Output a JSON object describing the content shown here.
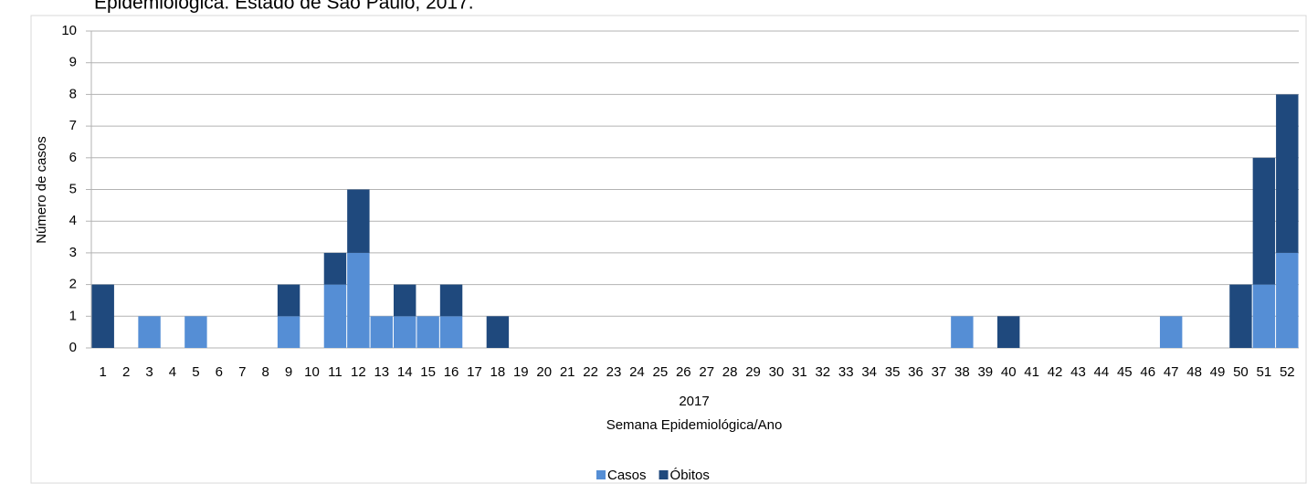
{
  "chart_data": {
    "type": "bar",
    "stacked": true,
    "title": "Epidemiológica. Estado de São Paulo, 2017.",
    "categories": [
      "1",
      "2",
      "3",
      "4",
      "5",
      "6",
      "7",
      "8",
      "9",
      "10",
      "11",
      "12",
      "13",
      "14",
      "15",
      "16",
      "17",
      "18",
      "19",
      "20",
      "21",
      "22",
      "23",
      "24",
      "25",
      "26",
      "27",
      "28",
      "29",
      "30",
      "31",
      "32",
      "33",
      "34",
      "35",
      "36",
      "37",
      "38",
      "39",
      "40",
      "41",
      "42",
      "43",
      "44",
      "45",
      "46",
      "47",
      "48",
      "49",
      "50",
      "51",
      "52"
    ],
    "x_group_label": "2017",
    "x_label": "Semana Epidemiológica/Ano",
    "y_label": "Número de casos",
    "series": [
      {
        "name": "Casos",
        "color": "#558ed5",
        "values": [
          0,
          0,
          1,
          0,
          1,
          0,
          0,
          0,
          1,
          0,
          2,
          3,
          1,
          1,
          1,
          1,
          0,
          0,
          0,
          0,
          0,
          0,
          0,
          0,
          0,
          0,
          0,
          0,
          0,
          0,
          0,
          0,
          0,
          0,
          0,
          0,
          0,
          1,
          0,
          0,
          0,
          0,
          0,
          0,
          0,
          0,
          1,
          0,
          0,
          0,
          2,
          3
        ]
      },
      {
        "name": "Óbitos",
        "color": "#1f497d",
        "values": [
          2,
          0,
          0,
          0,
          0,
          0,
          0,
          0,
          1,
          0,
          1,
          2,
          0,
          1,
          0,
          1,
          0,
          1,
          0,
          0,
          0,
          0,
          0,
          0,
          0,
          0,
          0,
          0,
          0,
          0,
          0,
          0,
          0,
          0,
          0,
          0,
          0,
          0,
          0,
          1,
          0,
          0,
          0,
          0,
          0,
          0,
          0,
          0,
          0,
          2,
          4,
          5
        ]
      }
    ],
    "ylim": [
      0,
      10
    ],
    "yticks": [
      0,
      1,
      2,
      3,
      4,
      5,
      6,
      7,
      8,
      9,
      10
    ],
    "grid": true,
    "legend": "bottom"
  }
}
